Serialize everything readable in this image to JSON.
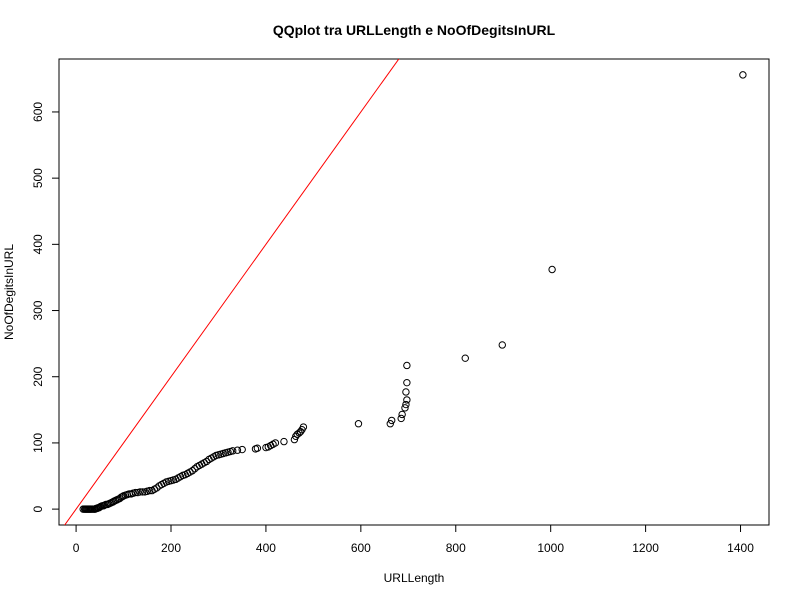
{
  "chart_data": {
    "type": "scatter",
    "title": "QQplot tra URLLength e NoOfDegitsInURL",
    "xlabel": "URLLength",
    "ylabel": "NoOfDegitsInURL",
    "xlim": [
      -36,
      1460
    ],
    "ylim": [
      -24,
      680
    ],
    "x_ticks": [
      0,
      200,
      400,
      600,
      800,
      1000,
      1200,
      1400
    ],
    "y_ticks": [
      0,
      100,
      200,
      300,
      400,
      500,
      600
    ],
    "grid": false,
    "legend": "none",
    "point_color": "#000000",
    "reference_line": {
      "slope": 1,
      "intercept": 0,
      "color": "#ff0000"
    },
    "points": [
      [
        15,
        0
      ],
      [
        18,
        0
      ],
      [
        20,
        0
      ],
      [
        22,
        0
      ],
      [
        24,
        0
      ],
      [
        26,
        0
      ],
      [
        28,
        0
      ],
      [
        30,
        0
      ],
      [
        32,
        0
      ],
      [
        35,
        0
      ],
      [
        38,
        0
      ],
      [
        40,
        0
      ],
      [
        42,
        1
      ],
      [
        44,
        1
      ],
      [
        46,
        2
      ],
      [
        48,
        2
      ],
      [
        50,
        3
      ],
      [
        52,
        4
      ],
      [
        55,
        5
      ],
      [
        58,
        5
      ],
      [
        60,
        6
      ],
      [
        63,
        7
      ],
      [
        66,
        7
      ],
      [
        69,
        8
      ],
      [
        72,
        9
      ],
      [
        75,
        10
      ],
      [
        78,
        11
      ],
      [
        80,
        12
      ],
      [
        83,
        13
      ],
      [
        86,
        14
      ],
      [
        89,
        15
      ],
      [
        92,
        16
      ],
      [
        95,
        18
      ],
      [
        98,
        19
      ],
      [
        100,
        20
      ],
      [
        104,
        21
      ],
      [
        108,
        22
      ],
      [
        112,
        23
      ],
      [
        116,
        23
      ],
      [
        120,
        24
      ],
      [
        125,
        25
      ],
      [
        130,
        25
      ],
      [
        135,
        26
      ],
      [
        140,
        26
      ],
      [
        145,
        26
      ],
      [
        150,
        27
      ],
      [
        155,
        28
      ],
      [
        160,
        28
      ],
      [
        165,
        30
      ],
      [
        170,
        32
      ],
      [
        175,
        35
      ],
      [
        180,
        37
      ],
      [
        185,
        39
      ],
      [
        190,
        41
      ],
      [
        195,
        42
      ],
      [
        200,
        43
      ],
      [
        205,
        44
      ],
      [
        210,
        45
      ],
      [
        215,
        47
      ],
      [
        220,
        49
      ],
      [
        225,
        51
      ],
      [
        230,
        52
      ],
      [
        235,
        54
      ],
      [
        240,
        56
      ],
      [
        245,
        58
      ],
      [
        250,
        61
      ],
      [
        255,
        64
      ],
      [
        260,
        66
      ],
      [
        265,
        68
      ],
      [
        270,
        70
      ],
      [
        275,
        72
      ],
      [
        280,
        75
      ],
      [
        285,
        77
      ],
      [
        290,
        79
      ],
      [
        295,
        81
      ],
      [
        300,
        82
      ],
      [
        305,
        83
      ],
      [
        310,
        84
      ],
      [
        315,
        85
      ],
      [
        320,
        86
      ],
      [
        325,
        87
      ],
      [
        330,
        88
      ],
      [
        340,
        89
      ],
      [
        350,
        90
      ],
      [
        378,
        91
      ],
      [
        382,
        92
      ],
      [
        400,
        93
      ],
      [
        405,
        94
      ],
      [
        410,
        96
      ],
      [
        415,
        98
      ],
      [
        420,
        100
      ],
      [
        438,
        102
      ],
      [
        460,
        105
      ],
      [
        463,
        110
      ],
      [
        466,
        113
      ],
      [
        470,
        115
      ],
      [
        473,
        117
      ],
      [
        476,
        120
      ],
      [
        479,
        124
      ],
      [
        595,
        129
      ],
      [
        662,
        129
      ],
      [
        665,
        134
      ],
      [
        685,
        137
      ],
      [
        687,
        143
      ],
      [
        693,
        153
      ],
      [
        695,
        158
      ],
      [
        697,
        165
      ],
      [
        695,
        177
      ],
      [
        697,
        191
      ],
      [
        697,
        217
      ],
      [
        820,
        228
      ],
      [
        898,
        248
      ],
      [
        1003,
        362
      ],
      [
        1405,
        656
      ]
    ]
  }
}
